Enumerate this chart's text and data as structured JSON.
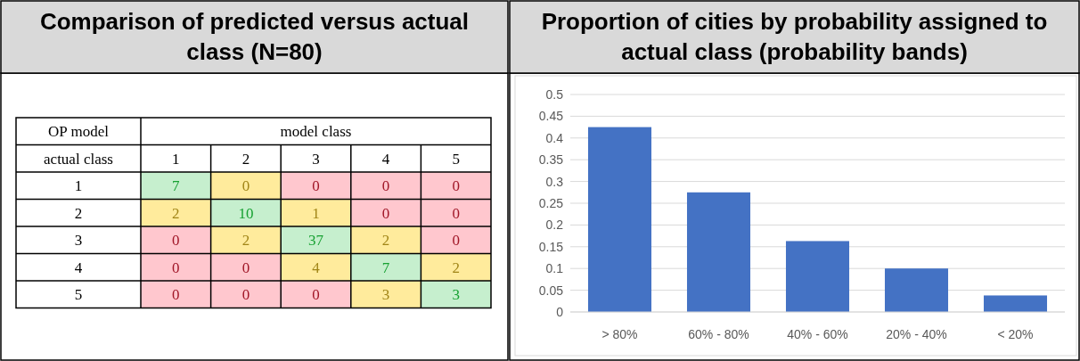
{
  "chart_data": [
    {
      "type": "heatmap",
      "title": "Comparison of predicted versus actual class (N=80)",
      "xlabel": "model class",
      "ylabel": "actual class",
      "annotations": [
        "OP model"
      ],
      "categories": [
        "1",
        "2",
        "3",
        "4",
        "5"
      ],
      "y_categories": [
        "1",
        "2",
        "3",
        "4",
        "5"
      ],
      "cells": [
        [
          7,
          0,
          0,
          0,
          0
        ],
        [
          2,
          10,
          1,
          0,
          0
        ],
        [
          0,
          2,
          37,
          2,
          0
        ],
        [
          0,
          0,
          4,
          7,
          2
        ],
        [
          0,
          0,
          0,
          3,
          3
        ]
      ],
      "colors": [
        "#c6efce",
        "#ffeb9c",
        "#ffc7ce"
      ],
      "data_labels": true
    },
    {
      "type": "bar",
      "title": "Proportion of cities by probability assigned to actual class (probability bands)",
      "categories": [
        "> 80%",
        "60% - 80%",
        "40% - 60%",
        "20% - 40%",
        "< 20%"
      ],
      "values": [
        0.425,
        0.275,
        0.163,
        0.1,
        0.038
      ],
      "color": "#4472c4",
      "ylim": [
        0,
        0.5
      ],
      "yticks": [
        0,
        0.05,
        0.1,
        0.15,
        0.2,
        0.25,
        0.3,
        0.35,
        0.4,
        0.45,
        0.5
      ],
      "grid": "y"
    }
  ]
}
